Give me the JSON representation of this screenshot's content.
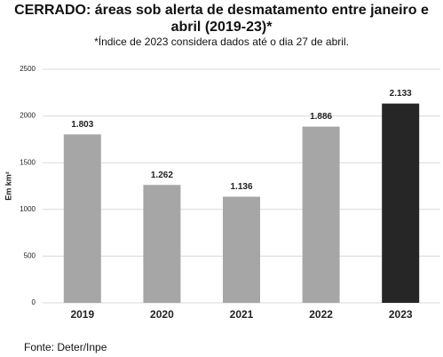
{
  "chart_data": {
    "type": "bar",
    "title": "CERRADO: áreas sob alerta de desmatamento entre janeiro e abril (2019-23)*",
    "subtitle": "*Índice de 2023 considera dados até o dia 27 de abril.",
    "y_label": "Em km²",
    "source": "Fonte: Deter/Inpe",
    "categories": [
      "2019",
      "2020",
      "2021",
      "2022",
      "2023"
    ],
    "values": [
      1803,
      1262,
      1136,
      1886,
      2133
    ],
    "value_labels": [
      "1.803",
      "1.262",
      "1.136",
      "1.886",
      "2.133"
    ],
    "colors": [
      "#a6a6a6",
      "#a6a6a6",
      "#a6a6a6",
      "#a6a6a6",
      "#262626"
    ],
    "ylim": [
      0,
      2500
    ],
    "yticks": [
      0,
      500,
      1000,
      1500,
      2000,
      2500
    ],
    "grid": true
  }
}
